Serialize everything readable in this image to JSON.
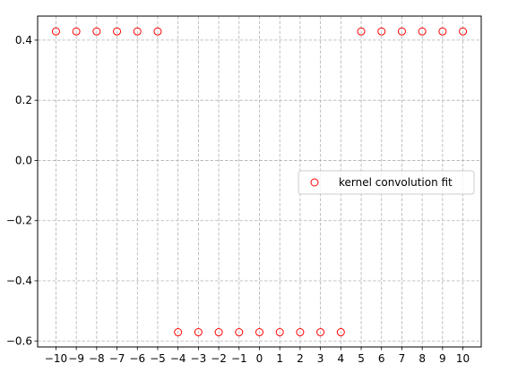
{
  "chart_data": {
    "type": "scatter",
    "title": "",
    "xlabel": "",
    "ylabel": "",
    "xlim": [
      -10.9,
      10.9
    ],
    "ylim": [
      -0.62,
      0.48
    ],
    "xticks": [
      -10,
      -9,
      -8,
      -7,
      -6,
      -5,
      -4,
      -3,
      -2,
      -1,
      0,
      1,
      2,
      3,
      4,
      5,
      6,
      7,
      8,
      9,
      10
    ],
    "xtick_labels": [
      "−10",
      "−9",
      "−8",
      "−7",
      "−6",
      "−5",
      "−4",
      "−3",
      "−2",
      "−1",
      "0",
      "1",
      "2",
      "3",
      "4",
      "5",
      "6",
      "7",
      "8",
      "9",
      "10"
    ],
    "yticks": [
      -0.6,
      -0.4,
      -0.2,
      0.0,
      0.2,
      0.4
    ],
    "ytick_labels": [
      "−0.6",
      "−0.4",
      "−0.2",
      "0.0",
      "0.2",
      "0.4"
    ],
    "grid": true,
    "legend": {
      "position": "center-right",
      "entries": [
        "kernel convolution fit"
      ]
    },
    "marker": {
      "shape": "open-circle",
      "color": "#ff0000"
    },
    "series": [
      {
        "name": "kernel convolution fit",
        "x": [
          -10,
          -9,
          -8,
          -7,
          -6,
          -5,
          -4,
          -3,
          -2,
          -1,
          0,
          1,
          2,
          3,
          4,
          5,
          6,
          7,
          8,
          9,
          10
        ],
        "y": [
          0.429,
          0.429,
          0.429,
          0.429,
          0.429,
          0.429,
          -0.571,
          -0.571,
          -0.571,
          -0.571,
          -0.571,
          -0.571,
          -0.571,
          -0.571,
          -0.571,
          0.429,
          0.429,
          0.429,
          0.429,
          0.429,
          0.429
        ]
      }
    ]
  }
}
